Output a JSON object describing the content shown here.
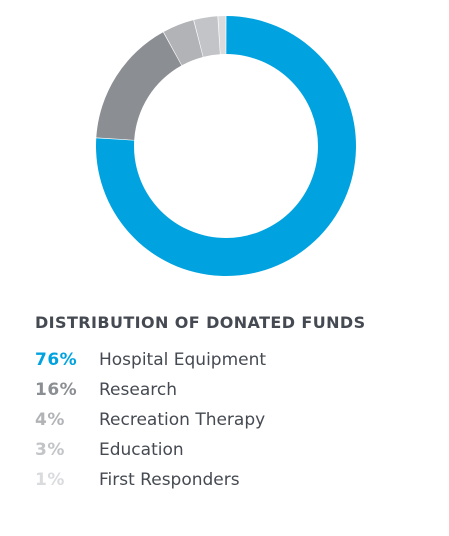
{
  "chart_data": {
    "type": "pie",
    "title": "DISTRIBUTION OF DONATED FUNDS",
    "categories": [
      "Hospital Equipment",
      "Research",
      "Recreation Therapy",
      "Education",
      "First Responders"
    ],
    "values": [
      76,
      16,
      4,
      3,
      1
    ],
    "value_labels": [
      "76%",
      "16%",
      "4%",
      "3%",
      "1%"
    ],
    "unit": "%",
    "colors": [
      "#00a3e0",
      "#8b8e92",
      "#b1b3b6",
      "#c2c4c7",
      "#dadbdd"
    ],
    "donut": true,
    "legend": "bottom",
    "grid": false
  }
}
